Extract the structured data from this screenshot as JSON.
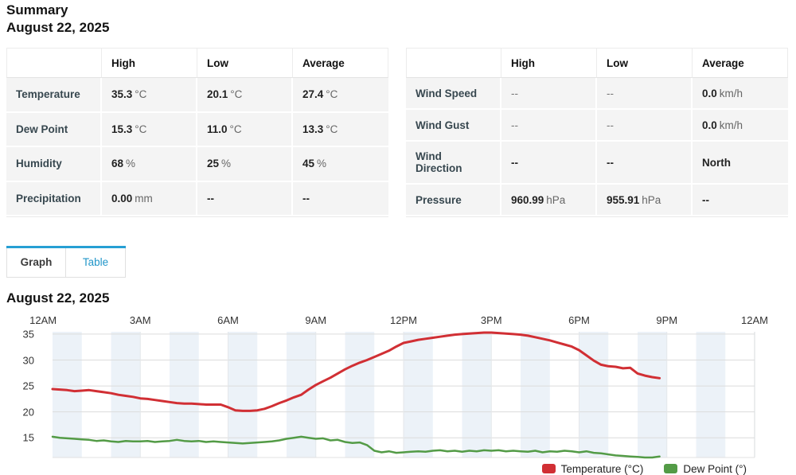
{
  "page": {
    "title": "Summary",
    "date": "August 22, 2025"
  },
  "summary_tables": [
    {
      "columns": [
        "",
        "High",
        "Low",
        "Average"
      ],
      "rows": [
        {
          "label": "Temperature",
          "cells": [
            {
              "value": "35.3",
              "unit": "°C"
            },
            {
              "value": "20.1",
              "unit": "°C"
            },
            {
              "value": "27.4",
              "unit": "°C"
            }
          ]
        },
        {
          "label": "Dew Point",
          "cells": [
            {
              "value": "15.3",
              "unit": "°C"
            },
            {
              "value": "11.0",
              "unit": "°C"
            },
            {
              "value": "13.3",
              "unit": "°C"
            }
          ]
        },
        {
          "label": "Humidity",
          "cells": [
            {
              "value": "68",
              "unit": "%"
            },
            {
              "value": "25",
              "unit": "%"
            },
            {
              "value": "45",
              "unit": "%"
            }
          ]
        },
        {
          "label": "Precipitation",
          "cells": [
            {
              "value": "0.00",
              "unit": "mm"
            },
            {
              "value": "--"
            },
            {
              "value": "--"
            }
          ]
        }
      ]
    },
    {
      "columns": [
        "",
        "High",
        "Low",
        "Average"
      ],
      "rows": [
        {
          "label": "Wind Speed",
          "cells": [
            {
              "value": "--",
              "muted": true
            },
            {
              "value": "--",
              "muted": true
            },
            {
              "value": "0.0",
              "unit": "km/h"
            }
          ]
        },
        {
          "label": "Wind Gust",
          "cells": [
            {
              "value": "--",
              "muted": true
            },
            {
              "value": "--",
              "muted": true
            },
            {
              "value": "0.0",
              "unit": "km/h"
            }
          ]
        },
        {
          "label": "Wind Direction",
          "cells": [
            {
              "value": "--"
            },
            {
              "value": "--"
            },
            {
              "value": "North"
            }
          ]
        },
        {
          "label": "Pressure",
          "cells": [
            {
              "value": "960.99",
              "unit": "hPa"
            },
            {
              "value": "955.91",
              "unit": "hPa"
            },
            {
              "value": "--"
            }
          ]
        }
      ]
    }
  ],
  "tabs": [
    {
      "label": "Graph",
      "active": true
    },
    {
      "label": "Table",
      "active": false
    }
  ],
  "chart_heading": "August 22, 2025",
  "chart_data": {
    "type": "line",
    "title": "August 22, 2025",
    "x_axis": {
      "tick_labels": [
        "12AM",
        "3AM",
        "6AM",
        "9AM",
        "12PM",
        "3PM",
        "6PM",
        "9PM",
        "12AM"
      ],
      "tick_hours": [
        0,
        3,
        6,
        9,
        12,
        15,
        18,
        21,
        24
      ],
      "range_hours": [
        0,
        24
      ],
      "alternating_hour_bands": true
    },
    "y_axis": {
      "ticks": [
        35,
        30,
        25,
        20,
        15
      ],
      "range": [
        11.2,
        35.45
      ]
    },
    "series": [
      {
        "name": "Temperature (°C)",
        "color": "#d12f34",
        "x_start_hour": 0,
        "x_step_hours": 0.25,
        "values": [
          24.4,
          24.3,
          24.2,
          24.0,
          24.1,
          24.2,
          24.0,
          23.8,
          23.6,
          23.3,
          23.1,
          22.9,
          22.6,
          22.5,
          22.3,
          22.1,
          21.9,
          21.7,
          21.6,
          21.6,
          21.5,
          21.4,
          21.4,
          21.4,
          20.9,
          20.3,
          20.2,
          20.2,
          20.3,
          20.6,
          21.1,
          21.7,
          22.2,
          22.8,
          23.3,
          24.3,
          25.2,
          25.9,
          26.6,
          27.4,
          28.2,
          28.9,
          29.5,
          30.0,
          30.6,
          31.2,
          31.8,
          32.6,
          33.3,
          33.6,
          33.9,
          34.1,
          34.3,
          34.5,
          34.7,
          34.9,
          35.0,
          35.1,
          35.2,
          35.3,
          35.3,
          35.2,
          35.1,
          35.0,
          34.9,
          34.7,
          34.4,
          34.1,
          33.8,
          33.4,
          33.0,
          32.6,
          31.9,
          30.9,
          29.9,
          29.1,
          28.8,
          28.7,
          28.4,
          28.5,
          27.4,
          27.0,
          26.7,
          26.5
        ]
      },
      {
        "name": "Dew Point (°)",
        "color": "#539b46",
        "x_start_hour": 0,
        "x_step_hours": 0.25,
        "values": [
          15.2,
          15.0,
          14.9,
          14.8,
          14.7,
          14.6,
          14.4,
          14.5,
          14.3,
          14.2,
          14.4,
          14.3,
          14.3,
          14.4,
          14.2,
          14.3,
          14.4,
          14.6,
          14.4,
          14.3,
          14.4,
          14.2,
          14.3,
          14.2,
          14.1,
          14.0,
          13.9,
          14.0,
          14.1,
          14.2,
          14.3,
          14.5,
          14.8,
          15.0,
          15.2,
          15.0,
          14.8,
          14.9,
          14.5,
          14.6,
          14.2,
          14.0,
          14.1,
          13.6,
          12.5,
          12.2,
          12.4,
          12.1,
          12.2,
          12.3,
          12.4,
          12.3,
          12.5,
          12.6,
          12.4,
          12.5,
          12.3,
          12.5,
          12.4,
          12.6,
          12.5,
          12.6,
          12.4,
          12.5,
          12.4,
          12.3,
          12.5,
          12.2,
          12.4,
          12.3,
          12.5,
          12.4,
          12.2,
          12.4,
          12.1,
          12.0,
          11.8,
          11.6,
          11.5,
          11.4,
          11.3,
          11.2,
          11.2,
          11.4
        ]
      }
    ],
    "legend": {
      "position": "bottom-right",
      "entries": [
        "Temperature (°C)",
        "Dew Point (°)"
      ]
    }
  },
  "colors": {
    "accent_blue": "#269fd4",
    "tab_link": "#2196c9",
    "temperature_line": "#d12f34",
    "dew_point_line": "#539b46",
    "plot_band": "#ecf2f8",
    "gridline": "#dcdcdc",
    "row_label": "#37474f"
  }
}
